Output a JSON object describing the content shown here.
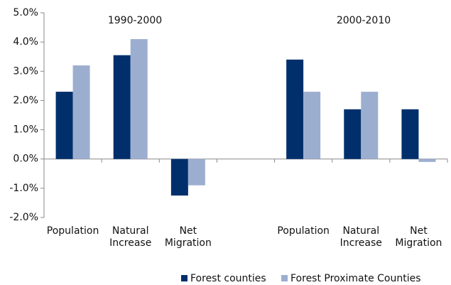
{
  "chart_data": {
    "type": "bar",
    "annotations": [
      "1990-2000",
      "2000-2010"
    ],
    "categories": [
      "Population",
      "Natural Increase",
      "Net Migration",
      null,
      "Population",
      "Natural Increase",
      "Net Migration"
    ],
    "series": [
      {
        "name": "Forest counties",
        "color": "#002f6c",
        "values": [
          2.3,
          3.55,
          -1.25,
          null,
          3.4,
          1.7,
          1.7
        ]
      },
      {
        "name": "Forest Proximate Counties",
        "color": "#9caed0",
        "values": [
          3.2,
          4.1,
          -0.9,
          null,
          2.3,
          2.3,
          -0.1
        ]
      }
    ],
    "ylim": [
      -2,
      5
    ],
    "yticks": [
      {
        "value": -2,
        "label": "-2.0%"
      },
      {
        "value": -1,
        "label": "-1.0%"
      },
      {
        "value": 0,
        "label": "0.0%"
      },
      {
        "value": 1,
        "label": "1.0%"
      },
      {
        "value": 2,
        "label": "2.0%"
      },
      {
        "value": 3,
        "label": "3.0%"
      },
      {
        "value": 4,
        "label": "4.0%"
      },
      {
        "value": 5,
        "label": "5.0%"
      }
    ],
    "legend": "bottom"
  }
}
